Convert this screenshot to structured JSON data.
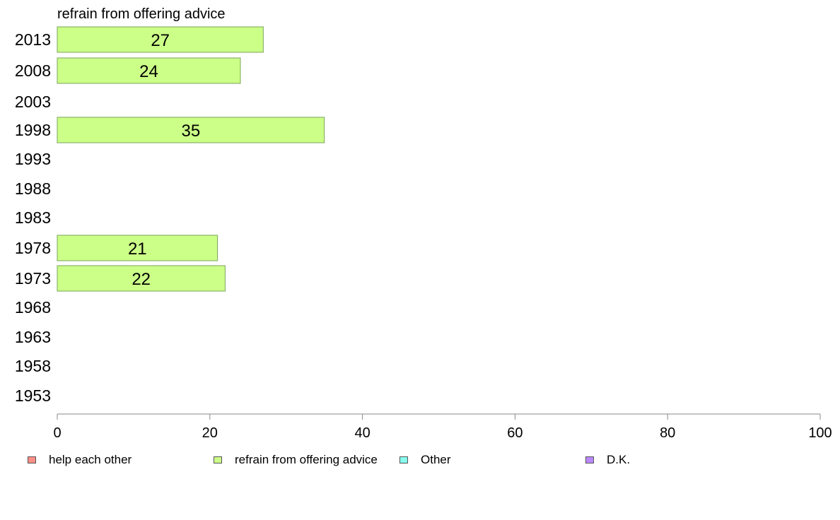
{
  "chart_data": {
    "type": "bar",
    "orientation": "horizontal",
    "title": "refrain from offering advice",
    "categories": [
      "2013",
      "2008",
      "2003",
      "1998",
      "1993",
      "1988",
      "1983",
      "1978",
      "1973",
      "1968",
      "1963",
      "1958",
      "1953"
    ],
    "series": [
      {
        "name": "help each other",
        "color": "#ff8f87",
        "values": [
          null,
          null,
          null,
          null,
          null,
          null,
          null,
          null,
          null,
          null,
          null,
          null,
          null
        ]
      },
      {
        "name": "refrain from offering advice",
        "color": "#ccff88",
        "values": [
          27,
          24,
          null,
          35,
          null,
          null,
          null,
          21,
          22,
          null,
          null,
          null,
          null
        ]
      },
      {
        "name": "Other",
        "color": "#88ffee",
        "values": [
          null,
          null,
          null,
          null,
          null,
          null,
          null,
          null,
          null,
          null,
          null,
          null,
          null
        ]
      },
      {
        "name": "D.K.",
        "color": "#bb88ff",
        "values": [
          null,
          null,
          null,
          null,
          null,
          null,
          null,
          null,
          null,
          null,
          null,
          null,
          null
        ]
      }
    ],
    "data_labels": true,
    "xlim": [
      0,
      100
    ],
    "xticks": [
      0,
      20,
      40,
      60,
      80,
      100
    ],
    "xlabel": "",
    "ylabel": "",
    "grid": false,
    "legend_position": "bottom"
  }
}
